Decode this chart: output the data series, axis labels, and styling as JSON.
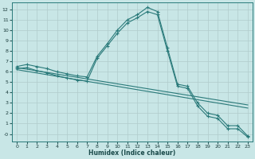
{
  "xlabel": "Humidex (Indice chaleur)",
  "background_color": "#c8e6e6",
  "grid_color": "#b0cccc",
  "line_color": "#2a7a7a",
  "xlim": [
    -0.5,
    23.5
  ],
  "ylim": [
    -0.7,
    12.7
  ],
  "xticks": [
    0,
    1,
    2,
    3,
    4,
    5,
    6,
    7,
    8,
    9,
    10,
    11,
    12,
    13,
    14,
    15,
    16,
    17,
    18,
    19,
    20,
    21,
    22,
    23
  ],
  "yticks": [
    0,
    1,
    2,
    3,
    4,
    5,
    6,
    7,
    8,
    9,
    10,
    11,
    12
  ],
  "curve1_x": [
    0,
    1,
    2,
    3,
    4,
    5,
    6,
    7,
    8,
    9,
    10,
    11,
    12,
    13,
    14,
    15,
    16,
    17,
    18,
    19,
    20,
    21,
    22,
    23
  ],
  "curve1_y": [
    6.5,
    6.7,
    6.5,
    6.3,
    6.0,
    5.8,
    5.6,
    5.5,
    7.5,
    8.7,
    10.0,
    11.0,
    11.5,
    12.2,
    11.8,
    8.3,
    4.8,
    4.6,
    3.0,
    2.0,
    1.8,
    0.8,
    0.8,
    -0.2
  ],
  "curve2_x": [
    0,
    1,
    2,
    3,
    4,
    5,
    6,
    7,
    8,
    9,
    10,
    11,
    12,
    13,
    14,
    15,
    16,
    17,
    18,
    19,
    20,
    21,
    22,
    23
  ],
  "curve2_y": [
    6.3,
    6.4,
    6.1,
    5.9,
    5.6,
    5.4,
    5.2,
    5.1,
    7.3,
    8.5,
    9.7,
    10.7,
    11.2,
    11.8,
    11.5,
    8.0,
    4.6,
    4.4,
    2.7,
    1.7,
    1.5,
    0.5,
    0.5,
    -0.3
  ],
  "line1_x": [
    0,
    23
  ],
  "line1_y": [
    6.4,
    2.8
  ],
  "line2_x": [
    0,
    23
  ],
  "line2_y": [
    6.2,
    2.5
  ]
}
